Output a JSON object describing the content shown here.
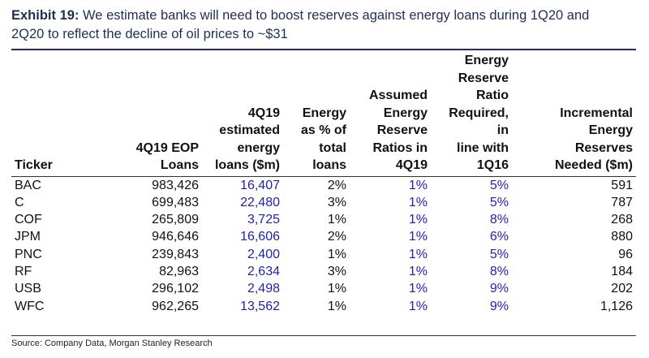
{
  "exhibit": {
    "label": "Exhibit 19:",
    "title_line1": "We estimate banks will need to boost reserves against energy loans during 1Q20 and",
    "title_line2": "2Q20 to reflect the decline of oil prices to ~$31"
  },
  "table": {
    "headers": [
      [
        "Ticker"
      ],
      [
        "4Q19 EOP",
        "Loans"
      ],
      [
        "4Q19",
        "estimated",
        "energy",
        "loans ($m)"
      ],
      [
        "Energy",
        "as % of",
        "total",
        "loans"
      ],
      [
        "Assumed",
        "Energy",
        "Reserve",
        "Ratios in",
        "4Q19"
      ],
      [
        "Energy",
        "Reserve",
        "Ratio",
        "Required, in",
        "line with",
        "1Q16"
      ],
      [
        "Incremental",
        "Energy",
        "Reserves",
        "Needed ($m)"
      ]
    ],
    "rows": [
      [
        "BAC",
        "983,426",
        "16,407",
        "2%",
        "1%",
        "5%",
        "591"
      ],
      [
        "C",
        "699,483",
        "22,480",
        "3%",
        "1%",
        "5%",
        "787"
      ],
      [
        "COF",
        "265,809",
        "3,725",
        "1%",
        "1%",
        "8%",
        "268"
      ],
      [
        "JPM",
        "946,646",
        "16,606",
        "2%",
        "1%",
        "6%",
        "880"
      ],
      [
        "PNC",
        "239,843",
        "2,400",
        "1%",
        "1%",
        "5%",
        "96"
      ],
      [
        "RF",
        "82,963",
        "2,634",
        "3%",
        "1%",
        "8%",
        "184"
      ],
      [
        "USB",
        "296,102",
        "2,498",
        "1%",
        "1%",
        "9%",
        "202"
      ],
      [
        "WFC",
        "962,265",
        "13,562",
        "1%",
        "1%",
        "9%",
        "1,126"
      ]
    ]
  },
  "source": "Source: Company Data, Morgan Stanley Research",
  "colors": {
    "title": "#1f2f54",
    "input_values": "#1f1fb0",
    "text": "#111111"
  }
}
